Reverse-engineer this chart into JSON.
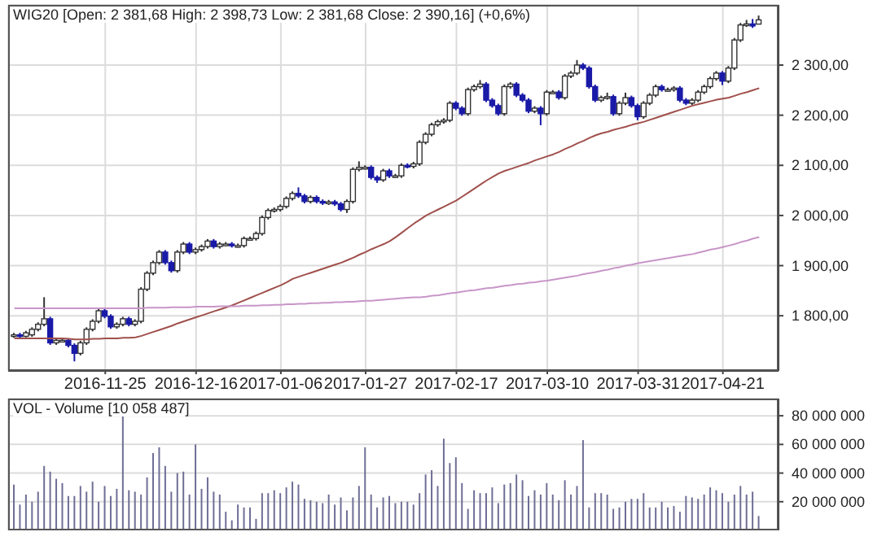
{
  "chart_data": [
    {
      "type": "candlestick",
      "title": "WIG20 [Open: 2 381,68  High: 2 398,73  Low: 2 381,68  Close: 2 390,16] (+0,6%)",
      "categories": [
        null,
        null,
        null,
        null,
        null,
        null,
        null,
        null,
        null,
        null,
        null,
        null,
        null,
        null,
        null,
        "2016-11-25",
        null,
        null,
        null,
        null,
        null,
        null,
        null,
        null,
        null,
        null,
        null,
        null,
        null,
        null,
        "2016-12-16",
        null,
        null,
        null,
        null,
        null,
        null,
        null,
        null,
        null,
        null,
        null,
        null,
        null,
        "2017-01-06",
        null,
        null,
        null,
        null,
        null,
        null,
        null,
        null,
        null,
        null,
        null,
        null,
        null,
        "2017-01-27",
        null,
        null,
        null,
        null,
        null,
        null,
        null,
        null,
        null,
        null,
        null,
        null,
        null,
        null,
        "2017-02-17",
        null,
        null,
        null,
        null,
        null,
        null,
        null,
        null,
        null,
        null,
        null,
        null,
        null,
        null,
        "2017-03-10",
        null,
        null,
        null,
        null,
        null,
        null,
        null,
        null,
        null,
        null,
        null,
        null,
        null,
        null,
        "2017-03-31",
        null,
        null,
        null,
        null,
        null,
        null,
        null,
        null,
        null,
        null,
        null,
        null,
        null,
        "2017-04-21",
        null,
        null,
        null,
        null,
        null,
        null
      ],
      "ohlc": [
        [
          1760,
          1766,
          1756,
          1762
        ],
        [
          1762,
          1766,
          1755,
          1759
        ],
        [
          1759,
          1770,
          1757,
          1766
        ],
        [
          1762,
          1777,
          1758,
          1773
        ],
        [
          1773,
          1787,
          1769,
          1783
        ],
        [
          1783,
          1837,
          1779,
          1794
        ],
        [
          1794,
          1798,
          1742,
          1746
        ],
        [
          1746,
          1755,
          1742,
          1751
        ],
        [
          1751,
          1755,
          1747,
          1751
        ],
        [
          1751,
          1755,
          1737,
          1741
        ],
        [
          1741,
          1745,
          1709,
          1725
        ],
        [
          1725,
          1750,
          1721,
          1746
        ],
        [
          1746,
          1777,
          1742,
          1773
        ],
        [
          1773,
          1793,
          1769,
          1789
        ],
        [
          1789,
          1814,
          1785,
          1810
        ],
        [
          1810,
          1814,
          1795,
          1799
        ],
        [
          1799,
          1803,
          1774,
          1778
        ],
        [
          1778,
          1787,
          1774,
          1783
        ],
        [
          1783,
          1798,
          1779,
          1794
        ],
        [
          1794,
          1798,
          1779,
          1783
        ],
        [
          1783,
          1793,
          1779,
          1789
        ],
        [
          1789,
          1857,
          1785,
          1853
        ],
        [
          1853,
          1889,
          1849,
          1885
        ],
        [
          1885,
          1910,
          1881,
          1906
        ],
        [
          1906,
          1931,
          1902,
          1927
        ],
        [
          1927,
          1931,
          1902,
          1906
        ],
        [
          1906,
          1910,
          1886,
          1890
        ],
        [
          1890,
          1931,
          1886,
          1927
        ],
        [
          1927,
          1947,
          1923,
          1943
        ],
        [
          1943,
          1947,
          1923,
          1927
        ],
        [
          1927,
          1936,
          1923,
          1932
        ],
        [
          1932,
          1942,
          1928,
          1938
        ],
        [
          1938,
          1953,
          1934,
          1949
        ],
        [
          1949,
          1953,
          1934,
          1938
        ],
        [
          1938,
          1947,
          1934,
          1943
        ],
        [
          1943,
          1947,
          1939,
          1943
        ],
        [
          1943,
          1947,
          1936,
          1940
        ],
        [
          1940,
          1944,
          1936,
          1940
        ],
        [
          1940,
          1958,
          1936,
          1954
        ],
        [
          1954,
          1958,
          1950,
          1954
        ],
        [
          1954,
          1968,
          1950,
          1964
        ],
        [
          1964,
          2000,
          1960,
          1996
        ],
        [
          1996,
          2014,
          1992,
          2010
        ],
        [
          2010,
          2016,
          2006,
          2012
        ],
        [
          2012,
          2022,
          2008,
          2018
        ],
        [
          2018,
          2038,
          2014,
          2034
        ],
        [
          2034,
          2048,
          2030,
          2044
        ],
        [
          2044,
          2056,
          2035,
          2039
        ],
        [
          2039,
          2043,
          2024,
          2028
        ],
        [
          2028,
          2040,
          2024,
          2036
        ],
        [
          2036,
          2040,
          2024,
          2028
        ],
        [
          2028,
          2032,
          2021,
          2025
        ],
        [
          2025,
          2031,
          2021,
          2027
        ],
        [
          2027,
          2031,
          2019,
          2023
        ],
        [
          2023,
          2027,
          2008,
          2012
        ],
        [
          2012,
          2032,
          2005,
          2028
        ],
        [
          2028,
          2096,
          2024,
          2092
        ],
        [
          2092,
          2108,
          2088,
          2096
        ],
        [
          2096,
          2100,
          2092,
          2096
        ],
        [
          2096,
          2100,
          2072,
          2076
        ],
        [
          2076,
          2080,
          2065,
          2071
        ],
        [
          2071,
          2093,
          2067,
          2089
        ],
        [
          2089,
          2093,
          2075,
          2079
        ],
        [
          2079,
          2083,
          2075,
          2079
        ],
        [
          2079,
          2104,
          2075,
          2100
        ],
        [
          2100,
          2104,
          2094,
          2098
        ],
        [
          2098,
          2107,
          2094,
          2103
        ],
        [
          2103,
          2150,
          2099,
          2146
        ],
        [
          2146,
          2166,
          2142,
          2162
        ],
        [
          2162,
          2185,
          2158,
          2181
        ],
        [
          2181,
          2191,
          2177,
          2187
        ],
        [
          2187,
          2194,
          2183,
          2190
        ],
        [
          2190,
          2228,
          2186,
          2224
        ],
        [
          2224,
          2228,
          2210,
          2214
        ],
        [
          2214,
          2218,
          2199,
          2203
        ],
        [
          2203,
          2255,
          2199,
          2251
        ],
        [
          2251,
          2261,
          2247,
          2257
        ],
        [
          2257,
          2270,
          2253,
          2262
        ],
        [
          2262,
          2266,
          2226,
          2230
        ],
        [
          2230,
          2234,
          2215,
          2219
        ],
        [
          2219,
          2223,
          2199,
          2203
        ],
        [
          2203,
          2261,
          2199,
          2257
        ],
        [
          2257,
          2266,
          2253,
          2262
        ],
        [
          2262,
          2266,
          2236,
          2240
        ],
        [
          2240,
          2244,
          2226,
          2230
        ],
        [
          2230,
          2234,
          2204,
          2208
        ],
        [
          2208,
          2218,
          2204,
          2214
        ],
        [
          2214,
          2218,
          2180,
          2203
        ],
        [
          2203,
          2250,
          2199,
          2246
        ],
        [
          2246,
          2250,
          2242,
          2246
        ],
        [
          2246,
          2250,
          2231,
          2235
        ],
        [
          2235,
          2282,
          2231,
          2278
        ],
        [
          2278,
          2288,
          2274,
          2284
        ],
        [
          2284,
          2310,
          2280,
          2300
        ],
        [
          2300,
          2304,
          2290,
          2294
        ],
        [
          2294,
          2298,
          2253,
          2257
        ],
        [
          2257,
          2261,
          2226,
          2230
        ],
        [
          2230,
          2239,
          2226,
          2235
        ],
        [
          2235,
          2245,
          2231,
          2237
        ],
        [
          2237,
          2241,
          2199,
          2203
        ],
        [
          2203,
          2228,
          2199,
          2224
        ],
        [
          2224,
          2245,
          2220,
          2235
        ],
        [
          2235,
          2239,
          2215,
          2219
        ],
        [
          2219,
          2223,
          2190,
          2197
        ],
        [
          2197,
          2228,
          2193,
          2224
        ],
        [
          2224,
          2244,
          2220,
          2240
        ],
        [
          2240,
          2261,
          2236,
          2257
        ],
        [
          2257,
          2261,
          2247,
          2251
        ],
        [
          2251,
          2255,
          2247,
          2251
        ],
        [
          2251,
          2258,
          2247,
          2254
        ],
        [
          2254,
          2258,
          2226,
          2230
        ],
        [
          2230,
          2234,
          2220,
          2224
        ],
        [
          2224,
          2234,
          2220,
          2230
        ],
        [
          2230,
          2250,
          2226,
          2246
        ],
        [
          2246,
          2261,
          2242,
          2257
        ],
        [
          2257,
          2277,
          2253,
          2273
        ],
        [
          2273,
          2288,
          2269,
          2284
        ],
        [
          2284,
          2288,
          2260,
          2268
        ],
        [
          2268,
          2298,
          2264,
          2294
        ],
        [
          2294,
          2354,
          2290,
          2350
        ],
        [
          2350,
          2384,
          2346,
          2380
        ],
        [
          2380,
          2390,
          2376,
          2382
        ],
        [
          2382,
          2392,
          2374,
          2378
        ],
        [
          2381.68,
          2398.73,
          2381.68,
          2390.16
        ]
      ],
      "series": [
        {
          "type": "line",
          "color": "#a0504c",
          "values": [
            1755,
            1755,
            1755,
            1755,
            1755,
            1755,
            1755,
            1755,
            1755,
            1754,
            1753,
            1753,
            1753,
            1754,
            1754,
            1755,
            1755,
            1755,
            1756,
            1756,
            1757,
            1760,
            1764,
            1768,
            1772,
            1776,
            1780,
            1785,
            1789,
            1793,
            1797,
            1801,
            1805,
            1809,
            1813,
            1817,
            1821,
            1826,
            1831,
            1836,
            1841,
            1846,
            1851,
            1856,
            1861,
            1867,
            1874,
            1878,
            1882,
            1886,
            1890,
            1894,
            1898,
            1902,
            1906,
            1911,
            1916,
            1922,
            1927,
            1933,
            1938,
            1943,
            1949,
            1957,
            1966,
            1975,
            1984,
            1992,
            2000,
            2006,
            2012,
            2018,
            2024,
            2030,
            2038,
            2046,
            2054,
            2062,
            2070,
            2077,
            2084,
            2089,
            2093,
            2097,
            2101,
            2105,
            2110,
            2114,
            2118,
            2122,
            2127,
            2133,
            2138,
            2144,
            2149,
            2155,
            2160,
            2164,
            2167,
            2171,
            2174,
            2177,
            2181,
            2184,
            2187,
            2191,
            2195,
            2199,
            2203,
            2207,
            2211,
            2215,
            2219,
            2222,
            2225,
            2228,
            2231,
            2233,
            2235,
            2239,
            2243,
            2246,
            2250,
            2254
          ]
        },
        {
          "type": "line",
          "color": "#c896c8",
          "values": [
            1815,
            1815,
            1815,
            1815,
            1815,
            1815,
            1815,
            1815,
            1815,
            1815,
            1815,
            1815,
            1815,
            1815,
            1815,
            1815,
            1815,
            1815,
            1815,
            1815,
            1815,
            1815,
            1816,
            1816,
            1816,
            1816,
            1817,
            1817,
            1817,
            1817,
            1818,
            1818,
            1818,
            1818,
            1819,
            1819,
            1819,
            1819,
            1820,
            1820,
            1820,
            1821,
            1821,
            1822,
            1822,
            1823,
            1823,
            1824,
            1824,
            1825,
            1825,
            1826,
            1826,
            1827,
            1827,
            1828,
            1828,
            1829,
            1830,
            1830,
            1831,
            1832,
            1833,
            1834,
            1835,
            1836,
            1837,
            1837,
            1838,
            1840,
            1841,
            1843,
            1845,
            1846,
            1848,
            1850,
            1851,
            1853,
            1855,
            1856,
            1858,
            1860,
            1861,
            1863,
            1864,
            1866,
            1867,
            1869,
            1870,
            1872,
            1874,
            1876,
            1878,
            1880,
            1883,
            1885,
            1887,
            1890,
            1892,
            1895,
            1897,
            1900,
            1902,
            1905,
            1907,
            1909,
            1911,
            1913,
            1915,
            1917,
            1919,
            1921,
            1923,
            1926,
            1929,
            1932,
            1934,
            1937,
            1940,
            1943,
            1947,
            1950,
            1954,
            1957
          ]
        }
      ],
      "ylim": [
        1690,
        2420
      ],
      "yticks": [
        {
          "value": 1800,
          "label": "1 800,00"
        },
        {
          "value": 1900,
          "label": "1 900,00"
        },
        {
          "value": 2000,
          "label": "2 000,00"
        },
        {
          "value": 2100,
          "label": "2 100,00"
        },
        {
          "value": 2200,
          "label": "2 200,00"
        },
        {
          "value": 2300,
          "label": "2 300,00"
        }
      ],
      "grid": true,
      "legend": false
    },
    {
      "type": "bar",
      "title": "VOL - Volume [10 058 487]",
      "color": "#6e6e96",
      "tick_labels": "y",
      "categories": [
        null,
        null,
        null,
        null,
        null,
        null,
        null,
        null,
        null,
        null,
        null,
        null,
        null,
        null,
        null,
        "2016-11-25",
        null,
        null,
        null,
        null,
        null,
        null,
        null,
        null,
        null,
        null,
        null,
        null,
        null,
        null,
        "2016-12-16",
        null,
        null,
        null,
        null,
        null,
        null,
        null,
        null,
        null,
        null,
        null,
        null,
        null,
        "2017-01-06",
        null,
        null,
        null,
        null,
        null,
        null,
        null,
        null,
        null,
        null,
        null,
        null,
        null,
        "2017-01-27",
        null,
        null,
        null,
        null,
        null,
        null,
        null,
        null,
        null,
        null,
        null,
        null,
        null,
        null,
        "2017-02-17",
        null,
        null,
        null,
        null,
        null,
        null,
        null,
        null,
        null,
        null,
        null,
        null,
        null,
        null,
        "2017-03-10",
        null,
        null,
        null,
        null,
        null,
        null,
        null,
        null,
        null,
        null,
        null,
        null,
        null,
        null,
        "2017-03-31",
        null,
        null,
        null,
        null,
        null,
        null,
        null,
        null,
        null,
        null,
        null,
        null,
        null,
        "2017-04-21",
        null,
        null,
        null,
        null,
        null,
        null
      ],
      "values": [
        32000000,
        18000000,
        25000000,
        20000000,
        27000000,
        45000000,
        41000000,
        36000000,
        33000000,
        24000000,
        24000000,
        31000000,
        27000000,
        34000000,
        20000000,
        31000000,
        24000000,
        29000000,
        80000000,
        28000000,
        27000000,
        25000000,
        37000000,
        54000000,
        58000000,
        45000000,
        27000000,
        40000000,
        41000000,
        25000000,
        60000000,
        29000000,
        37000000,
        27000000,
        25000000,
        13000000,
        7000000,
        18000000,
        16000000,
        16000000,
        8000000,
        26000000,
        26000000,
        28000000,
        26000000,
        30000000,
        34000000,
        32000000,
        22000000,
        21000000,
        20000000,
        19000000,
        25000000,
        18000000,
        23000000,
        14000000,
        23000000,
        31000000,
        58000000,
        25000000,
        16000000,
        23000000,
        24000000,
        19000000,
        20000000,
        20000000,
        18000000,
        26000000,
        39000000,
        42000000,
        31000000,
        64000000,
        47000000,
        51000000,
        33000000,
        15000000,
        28000000,
        26000000,
        26000000,
        30000000,
        19000000,
        32000000,
        33000000,
        39000000,
        35000000,
        24000000,
        28000000,
        25000000,
        33000000,
        25000000,
        21000000,
        35000000,
        25000000,
        31000000,
        63000000,
        16000000,
        26000000,
        26000000,
        25000000,
        15000000,
        16000000,
        20000000,
        22000000,
        22000000,
        26000000,
        16000000,
        16000000,
        20000000,
        16000000,
        17000000,
        13000000,
        24000000,
        23000000,
        22000000,
        25000000,
        30000000,
        28000000,
        26000000,
        20000000,
        25000000,
        31000000,
        25000000,
        27000000,
        10058487
      ],
      "ylim": [
        0,
        92000000
      ],
      "yticks": [
        {
          "value": 20000000,
          "label": "20 000 000"
        },
        {
          "value": 40000000,
          "label": "40 000 000"
        },
        {
          "value": 60000000,
          "label": "60 000 000"
        },
        {
          "value": 80000000,
          "label": "80 000 000"
        }
      ],
      "grid": true,
      "legend": false
    }
  ]
}
